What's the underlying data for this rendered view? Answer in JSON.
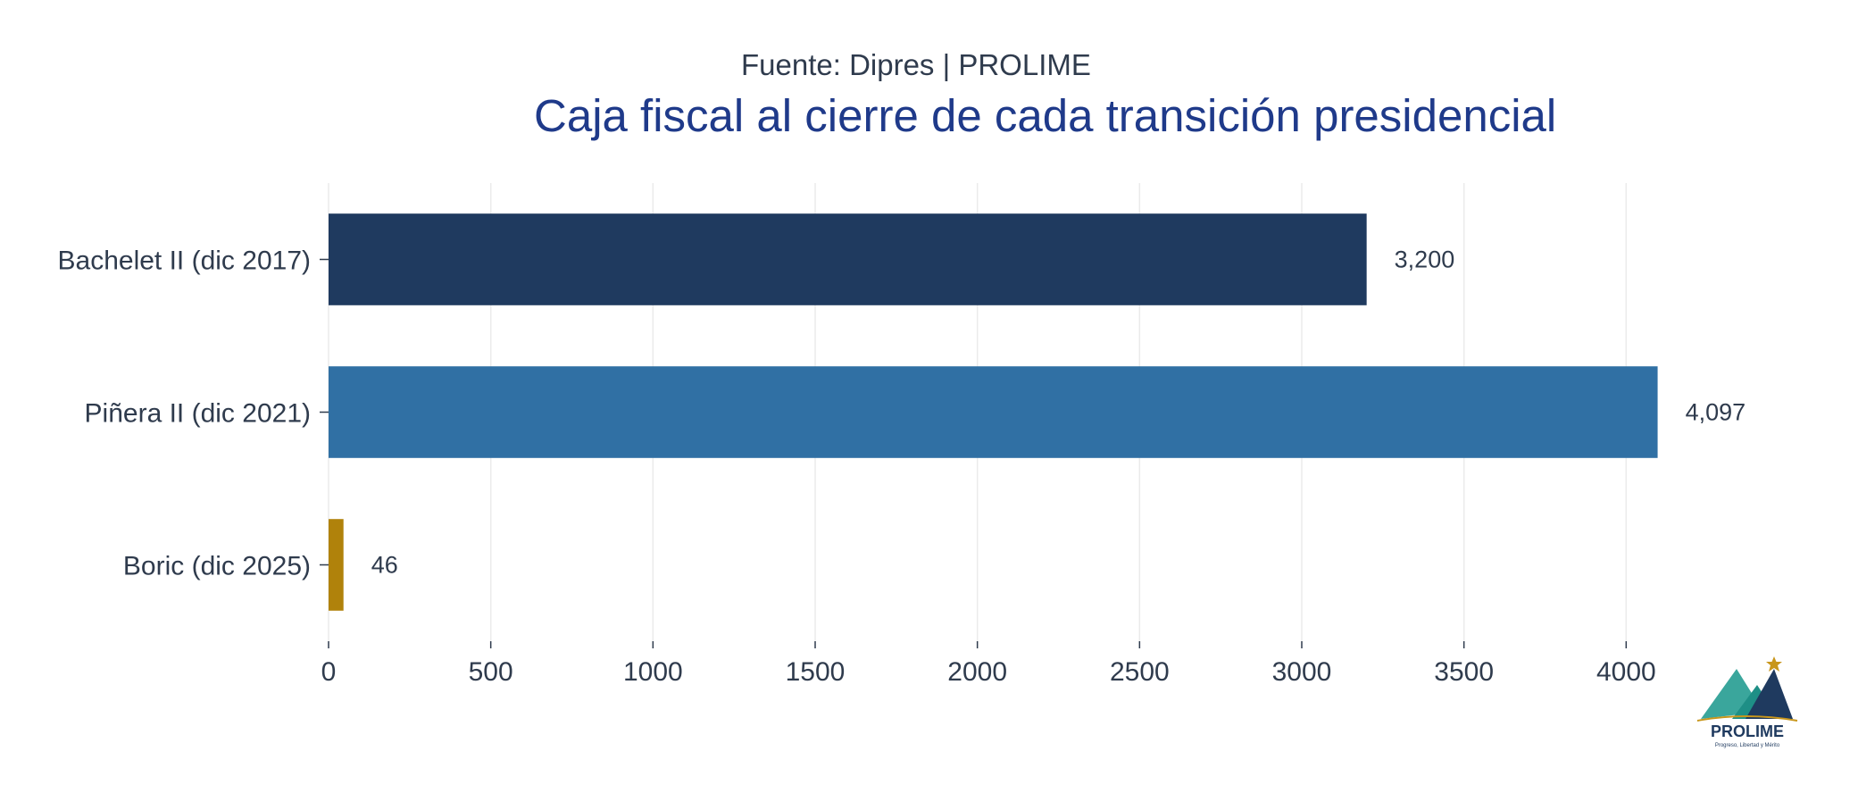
{
  "chart_data": {
    "type": "bar",
    "orientation": "horizontal",
    "subtitle": "Fuente: Dipres | PROLIME",
    "title": "Caja fiscal al cierre de cada transición presidencial",
    "categories": [
      "Bachelet II (dic 2017)",
      "Piñera II (dic 2021)",
      "Boric (dic 2025)"
    ],
    "values": [
      3200,
      4097,
      46
    ],
    "value_labels": [
      "3,200",
      "4,097",
      "46"
    ],
    "bar_colors": [
      "#1f3a5f",
      "#3070a4",
      "#b0820b"
    ],
    "xlim": [
      0,
      4200
    ],
    "x_ticks": [
      0,
      500,
      1000,
      1500,
      2000,
      2500,
      3000,
      3500,
      4000
    ],
    "grid": true,
    "xlabel": "",
    "ylabel": ""
  },
  "logo": {
    "name": "PROLIME",
    "tagline": "Progreso, Libertad y Mérito"
  }
}
